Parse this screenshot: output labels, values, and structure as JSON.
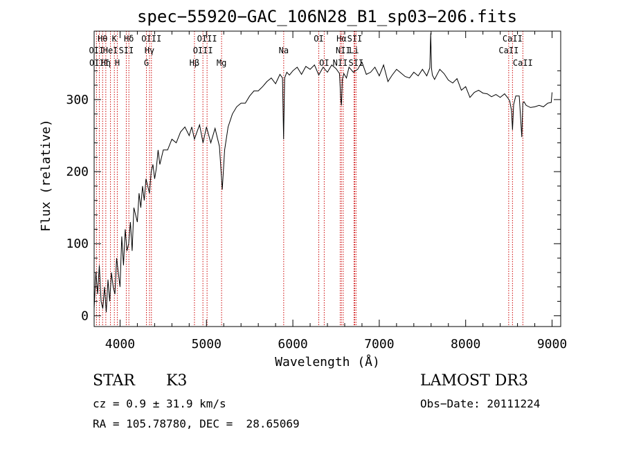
{
  "title": "spec−55920−GAC_106N28_B1_sp03−206.fits",
  "info": {
    "class": "STAR",
    "subclass": "K3",
    "survey": "LAMOST DR3",
    "cz": "cz = 0.9 ± 31.9 km/s",
    "obs_date": "Obs−Date: 20111224",
    "radec": "RA = 105.78780, DEC =  28.65069"
  },
  "chart_data": {
    "type": "line",
    "title": "spec−55920−GAC_106N28_B1_sp03−206.fits",
    "xlabel": "Wavelength (Å)",
    "ylabel": "Flux (relative)",
    "xlim": [
      3700,
      9100
    ],
    "ylim": [
      -15,
      395
    ],
    "xticks": [
      4000,
      5000,
      6000,
      7000,
      8000,
      9000
    ],
    "yticks": [
      0,
      100,
      200,
      300
    ],
    "color": "#000000",
    "line_color": "#cc0000",
    "series": [
      {
        "name": "flux",
        "x": [
          3700,
          3720,
          3740,
          3760,
          3780,
          3800,
          3820,
          3840,
          3860,
          3880,
          3900,
          3920,
          3940,
          3960,
          3980,
          4000,
          4020,
          4040,
          4060,
          4080,
          4100,
          4120,
          4140,
          4160,
          4180,
          4200,
          4220,
          4240,
          4260,
          4280,
          4300,
          4320,
          4340,
          4360,
          4380,
          4400,
          4420,
          4440,
          4460,
          4480,
          4500,
          4550,
          4600,
          4650,
          4700,
          4750,
          4800,
          4830,
          4861,
          4890,
          4920,
          4960,
          5000,
          5050,
          5100,
          5150,
          5183,
          5210,
          5250,
          5300,
          5350,
          5400,
          5450,
          5500,
          5550,
          5600,
          5650,
          5700,
          5750,
          5800,
          5850,
          5880,
          5893,
          5905,
          5930,
          5960,
          6000,
          6050,
          6100,
          6150,
          6200,
          6250,
          6300,
          6350,
          6400,
          6450,
          6500,
          6540,
          6555,
          6563,
          6572,
          6590,
          6620,
          6650,
          6700,
          6750,
          6800,
          6850,
          6900,
          6950,
          7000,
          7050,
          7100,
          7150,
          7200,
          7250,
          7300,
          7350,
          7400,
          7450,
          7500,
          7550,
          7585,
          7595,
          7605,
          7615,
          7640,
          7700,
          7750,
          7800,
          7850,
          7900,
          7950,
          8000,
          8050,
          8100,
          8150,
          8200,
          8250,
          8300,
          8350,
          8400,
          8450,
          8490,
          8510,
          8530,
          8542,
          8555,
          8580,
          8620,
          8650,
          8662,
          8675,
          8700,
          8750,
          8800,
          8850,
          8900,
          8950,
          8990,
          9000
        ],
        "y": [
          10,
          60,
          30,
          70,
          20,
          10,
          40,
          5,
          50,
          20,
          60,
          40,
          30,
          80,
          60,
          40,
          110,
          70,
          120,
          90,
          100,
          130,
          90,
          150,
          140,
          130,
          170,
          150,
          180,
          160,
          190,
          180,
          170,
          200,
          210,
          190,
          205,
          230,
          210,
          220,
          230,
          230,
          245,
          240,
          255,
          262,
          250,
          262,
          245,
          255,
          265,
          240,
          262,
          240,
          260,
          235,
          175,
          230,
          262,
          280,
          290,
          295,
          295,
          305,
          312,
          312,
          318,
          325,
          330,
          322,
          335,
          330,
          245,
          330,
          338,
          334,
          340,
          345,
          335,
          346,
          342,
          348,
          334,
          345,
          338,
          348,
          343,
          336,
          300,
          292,
          328,
          336,
          330,
          345,
          338,
          342,
          352,
          335,
          338,
          345,
          333,
          348,
          325,
          334,
          342,
          337,
          332,
          330,
          338,
          333,
          342,
          333,
          344,
          392,
          343,
          334,
          328,
          342,
          336,
          327,
          323,
          329,
          313,
          318,
          303,
          310,
          313,
          309,
          308,
          304,
          307,
          303,
          308,
          302,
          298,
          285,
          258,
          293,
          305,
          305,
          248,
          295,
          297,
          292,
          289,
          290,
          292,
          290,
          295,
          296,
          310
        ]
      }
    ],
    "lines": [
      {
        "name": "Hθ",
        "x": 3798,
        "row": 0
      },
      {
        "name": "OII",
        "x": 3727,
        "row": 1
      },
      {
        "name": "OIII",
        "x": 3760,
        "row": 2
      },
      {
        "name": "Hη",
        "x": 3835,
        "row": 2
      },
      {
        "name": "HeI",
        "x": 3889,
        "row": 1
      },
      {
        "name": "K",
        "x": 3934,
        "row": 0
      },
      {
        "name": "H",
        "x": 3968,
        "row": 2
      },
      {
        "name": "SII",
        "x": 4072,
        "row": 1
      },
      {
        "name": "Hδ",
        "x": 4102,
        "row": 0
      },
      {
        "name": "OIII",
        "x": 4363,
        "row": 0
      },
      {
        "name": "Hγ",
        "x": 4341,
        "row": 1
      },
      {
        "name": "G",
        "x": 4305,
        "row": 2
      },
      {
        "name": "Hβ",
        "x": 4861,
        "row": 2
      },
      {
        "name": "OIII",
        "x": 4959,
        "row": 1
      },
      {
        "name": "OIII",
        "x": 5007,
        "row": 0
      },
      {
        "name": "Mg",
        "x": 5175,
        "row": 2
      },
      {
        "name": "Na",
        "x": 5894,
        "row": 1
      },
      {
        "name": "OI",
        "x": 6300,
        "row": 0
      },
      {
        "name": "OI",
        "x": 6363,
        "row": 2
      },
      {
        "name": "Hα",
        "x": 6563,
        "row": 0
      },
      {
        "name": "SII",
        "x": 6716,
        "row": 0
      },
      {
        "name": "SII",
        "x": 6731,
        "row": 2
      },
      {
        "name": "NII",
        "x": 6583,
        "row": 1
      },
      {
        "name": "NII",
        "x": 6548,
        "row": 2
      },
      {
        "name": "Li",
        "x": 6708,
        "row": 1
      },
      {
        "name": "CaII",
        "x": 8498,
        "row": 1
      },
      {
        "name": "CaII",
        "x": 8542,
        "row": 0
      },
      {
        "name": "CaII",
        "x": 8662,
        "row": 2
      }
    ]
  }
}
